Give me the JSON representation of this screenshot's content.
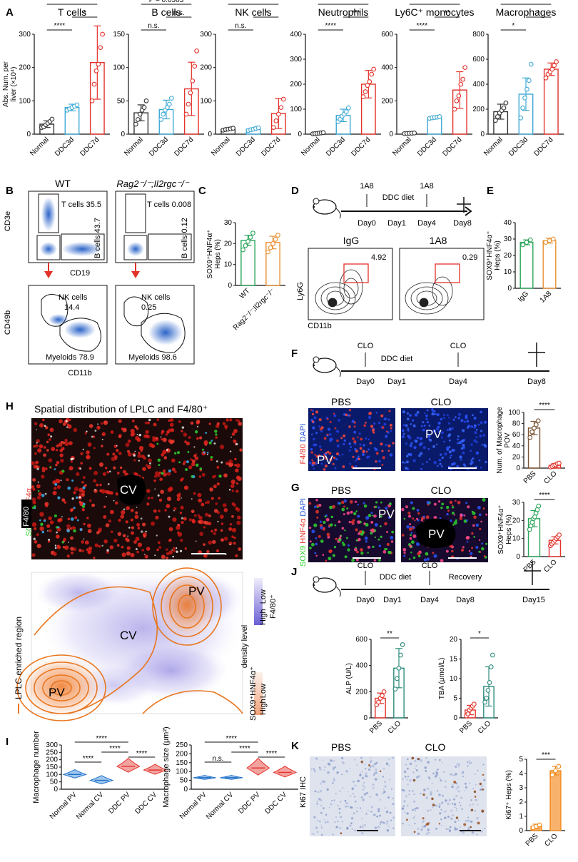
{
  "colors": {
    "normal": "#333333",
    "ddc3d": "#3fa9d6",
    "ddc7d": "#e3322b",
    "wt": "#2aa55a",
    "rag": "#e99033",
    "pbs": "#7a5230",
    "clo": "#e3322b",
    "teal": "#2a8a7a",
    "orange": "#f08a1c",
    "blueRow": "#1f6fc6"
  },
  "panelA": {
    "letter": "A",
    "ylabel_line1": "Abs. Num. per",
    "ylabel_line2": "liver (×10⁴)",
    "groups": [
      "Normal",
      "DDC3d",
      "DDC7d"
    ],
    "charts": [
      {
        "title": "T cells",
        "ymax": 300,
        "ticks": [
          "0",
          "100",
          "200",
          "300"
        ],
        "means": [
          30,
          80,
          215
        ],
        "sd": [
          10,
          10,
          110
        ],
        "points": [
          [
            20,
            22,
            28,
            33,
            38,
            45
          ],
          [
            72,
            76,
            80,
            84,
            88
          ],
          [
            100,
            150,
            190,
            210,
            260,
            300
          ]
        ],
        "sigs": [
          {
            "a": 0,
            "b": 2,
            "label": "***",
            "level": 2
          },
          {
            "a": 0,
            "b": 1,
            "label": "****",
            "level": 0
          },
          {
            "a": 1,
            "b": 2,
            "label": "*",
            "level": 1
          }
        ]
      },
      {
        "title": "B cells",
        "ymax": 150,
        "ticks": [
          "0",
          "50",
          "100",
          "150"
        ],
        "means": [
          32,
          37,
          68
        ],
        "sd": [
          12,
          14,
          40
        ],
        "points": [
          [
            15,
            22,
            30,
            36,
            40,
            50
          ],
          [
            22,
            30,
            36,
            40,
            45,
            54
          ],
          [
            30,
            45,
            62,
            80,
            102,
            125
          ]
        ],
        "sigs": [
          {
            "a": 0,
            "b": 2,
            "label": "P = 0.0503",
            "level": 2
          },
          {
            "a": 0,
            "b": 1,
            "label": "n.s.",
            "level": 0
          },
          {
            "a": 1,
            "b": 2,
            "label": "n.s.",
            "level": 1
          }
        ]
      },
      {
        "title": "NK cells",
        "ymax": 300,
        "ticks": [
          "0",
          "100",
          "200",
          "300"
        ],
        "means": [
          15,
          15,
          62
        ],
        "sd": [
          3,
          4,
          45
        ],
        "points": [
          [
            12,
            14,
            15,
            16,
            18
          ],
          [
            11,
            13,
            15,
            17,
            19
          ],
          [
            20,
            40,
            60,
            80,
            105
          ]
        ],
        "sigs": [
          {
            "a": 0,
            "b": 2,
            "label": "*",
            "level": 2
          },
          {
            "a": 0,
            "b": 1,
            "label": "n.s.",
            "level": 0
          },
          {
            "a": 1,
            "b": 2,
            "label": "*",
            "level": 1
          }
        ]
      },
      {
        "title": "Neutrophils",
        "ymax": 400,
        "ticks": [
          "0",
          "100",
          "200",
          "300",
          "400"
        ],
        "means": [
          3,
          75,
          200
        ],
        "sd": [
          2,
          25,
          55
        ],
        "points": [
          [
            1,
            2,
            3,
            4,
            5,
            6
          ],
          [
            50,
            60,
            72,
            80,
            90,
            105
          ],
          [
            150,
            170,
            195,
            210,
            240,
            260
          ]
        ],
        "sigs": [
          {
            "a": 0,
            "b": 2,
            "label": "****",
            "level": 2
          },
          {
            "a": 0,
            "b": 1,
            "label": "****",
            "level": 0
          },
          {
            "a": 1,
            "b": 2,
            "label": "***",
            "level": 1
          }
        ]
      },
      {
        "title": "Ly6C⁺ monocytes",
        "ymax": 600,
        "ticks": [
          "0",
          "200",
          "400",
          "600"
        ],
        "means": [
          5,
          100,
          265
        ],
        "sd": [
          2,
          5,
          110
        ],
        "points": [
          [
            3,
            4,
            5,
            6,
            7
          ],
          [
            95,
            98,
            100,
            102,
            105
          ],
          [
            150,
            200,
            230,
            300,
            330,
            400
          ]
        ],
        "sigs": [
          {
            "a": 0,
            "b": 2,
            "label": "****",
            "level": 2
          },
          {
            "a": 0,
            "b": 1,
            "label": "****",
            "level": 0
          },
          {
            "a": 1,
            "b": 2,
            "label": "**",
            "level": 1
          }
        ]
      },
      {
        "title": "Macrophages",
        "ymax": 800,
        "ticks": [
          "0",
          "200",
          "400",
          "600",
          "800"
        ],
        "means": [
          180,
          320,
          520
        ],
        "sd": [
          60,
          130,
          50
        ],
        "points": [
          [
            110,
            140,
            170,
            190,
            210,
            250
          ],
          [
            130,
            210,
            290,
            360,
            430,
            560
          ],
          [
            450,
            480,
            500,
            520,
            550,
            580
          ]
        ],
        "sigs": [
          {
            "a": 0,
            "b": 2,
            "label": "****",
            "level": 2
          },
          {
            "a": 0,
            "b": 1,
            "label": "*",
            "level": 0
          },
          {
            "a": 1,
            "b": 2,
            "label": "*",
            "level": 1
          }
        ]
      }
    ]
  },
  "panelB": {
    "letter": "B",
    "wt": "WT",
    "rag": "Rag2⁻/⁻;Il2rgc⁻/⁻",
    "ax_cd3e": "CD3e",
    "ax_cd19": "CD19",
    "ax_cd49b": "CD49b",
    "ax_cd11b": "CD11b",
    "wt_t": "T cells 35.5",
    "wt_b": "B cells 43.7",
    "rag_t": "T cells 0.008",
    "rag_b": "B cells 0.12",
    "nk_label": "NK cells",
    "wt_nk_val": "14.4",
    "rag_nk_val": "0.25",
    "wt_myeloid": "Myeloids 78.9",
    "rag_myeloid": "Myeloids 98.6"
  },
  "panelC": {
    "letter": "C",
    "ylabel_line1": "SOX9⁺HNF4α⁺",
    "ylabel_line2": "Heps (%)",
    "ticks": [
      "0",
      "10",
      "20",
      "30"
    ],
    "groups": [
      "WT",
      "Rag2⁻/⁻;Il2rgc⁻/⁻"
    ],
    "means": [
      21.5,
      20.5
    ],
    "sd": [
      2.5,
      3
    ],
    "points": [
      [
        17,
        19,
        21,
        23,
        25
      ],
      [
        16,
        18,
        20,
        22,
        24
      ]
    ]
  },
  "panelD": {
    "letter": "D",
    "t1": "1A8",
    "t2": "1A8",
    "diet": "DDC diet",
    "days": [
      "Day0",
      "Day1",
      "Day4",
      "Day8"
    ],
    "igg": "IgG",
    "a18": "1A8",
    "val1": "4.92",
    "val2": "0.29",
    "ax_ly6g": "Ly6G",
    "ax_cd11b": "CD11b"
  },
  "panelE": {
    "letter": "E",
    "ylabel_line1": "SOX9⁺HNF4α⁺",
    "ylabel_line2": "Heps (%)",
    "ticks": [
      "0",
      "10",
      "20",
      "30",
      "40"
    ],
    "groups": [
      "IgG",
      "1A8"
    ],
    "means": [
      28,
      29
    ],
    "sd": [
      1.5,
      1.5
    ],
    "points": [
      [
        26.5,
        28,
        29.5
      ],
      [
        28,
        29,
        30
      ]
    ]
  },
  "panelF": {
    "letter": "F",
    "t1": "CLO",
    "t2": "CLO",
    "diet": "DDC diet",
    "days": [
      "Day0",
      "Day1",
      "Day4",
      "Day8"
    ]
  },
  "panelFimg": {
    "pbs": "PBS",
    "clo": "CLO",
    "pv": "PV",
    "f480": "F4/80",
    "dapi": "DAPI",
    "ylabel_line1": "Num. of Macrophage",
    "ylabel_line2": "POV",
    "ticks": [
      "0",
      "20",
      "40",
      "60",
      "80",
      "100"
    ],
    "groups": [
      "PBS",
      "CLO"
    ],
    "means": [
      72,
      5
    ],
    "sd": [
      12,
      3
    ],
    "points": [
      [
        55,
        65,
        72,
        78,
        85
      ],
      [
        2,
        3,
        5,
        6,
        8,
        9
      ]
    ],
    "sig": "****"
  },
  "panelG": {
    "letter": "G",
    "pbs": "PBS",
    "clo": "CLO",
    "pv": "PV",
    "sox9": "SOX9",
    "hnf4a": "HNF4α",
    "dapi": "DAPI",
    "ylabel_line1": "SOX9⁺HNF4α⁺",
    "ylabel_line2": "Heps (%)",
    "ticks": [
      "0",
      "10",
      "20",
      "30"
    ],
    "groups": [
      "PBS",
      "CLO"
    ],
    "means": [
      21,
      9
    ],
    "sd": [
      4.5,
      2
    ],
    "points": [
      [
        15,
        17,
        19,
        21,
        22,
        24,
        26,
        28
      ],
      [
        6,
        7,
        8,
        9,
        10,
        11,
        12
      ]
    ],
    "sig": "****"
  },
  "panelH": {
    "letter": "H",
    "title": "Spatial distribution of LPLC and F4/80⁺",
    "cv": "CV",
    "pv": "PV",
    "sox9": "SOX9",
    "hnf4a": "HNF4α",
    "f480": "F4/80",
    "legend_lplc": "LPLC enriched region",
    "density": "density level",
    "f480_leg": "F4/80⁺",
    "sox9_leg": "SOX9⁺HNF4α⁺",
    "low": "Low",
    "high": "High"
  },
  "panelI": {
    "letter": "I",
    "c1": {
      "ylabel": "Macrophage number",
      "ticks": [
        "0",
        "50",
        "100",
        "150",
        "200",
        "250",
        "300"
      ],
      "ymax": 300,
      "groups": [
        "Normal PV",
        "Normal CV",
        "DDC PV",
        "DDC CV"
      ],
      "medians": [
        100,
        60,
        155,
        130
      ],
      "spread": [
        15,
        15,
        25,
        18
      ],
      "sigs": [
        {
          "a": 0,
          "b": 2,
          "label": "****",
          "level": 2
        },
        {
          "a": 1,
          "b": 2,
          "label": "****",
          "level": 1
        },
        {
          "a": 0,
          "b": 1,
          "label": "****",
          "level": 0
        },
        {
          "a": 2,
          "b": 3,
          "label": "****",
          "level": 0.5
        }
      ]
    },
    "c2": {
      "ylabel": "Macrophage size (μm²)",
      "ticks": [
        "0",
        "50",
        "100",
        "150",
        "200",
        "250"
      ],
      "ymax": 250,
      "groups": [
        "Normal PV",
        "Normal CV",
        "DDC PV",
        "DDC CV"
      ],
      "medians": [
        65,
        65,
        120,
        95
      ],
      "spread": [
        6,
        6,
        25,
        16
      ],
      "sigs": [
        {
          "a": 0,
          "b": 2,
          "label": "****",
          "level": 2
        },
        {
          "a": 1,
          "b": 2,
          "label": "****",
          "level": 1
        },
        {
          "a": 0,
          "b": 1,
          "label": "n.s.",
          "level": 0
        },
        {
          "a": 2,
          "b": 3,
          "label": "****",
          "level": 0.5
        }
      ]
    }
  },
  "panelJ": {
    "letter": "J",
    "t1": "CLO",
    "t2": "CLO",
    "diet": "DDC diet",
    "recovery": "Recovery",
    "days": [
      "Day0",
      "Day1",
      "Day4",
      "Day8",
      "Day15"
    ],
    "alp": {
      "ylabel": "ALP (U/L)",
      "ticks": [
        "0",
        "200",
        "400",
        "600"
      ],
      "ymax": 600,
      "groups": [
        "PBS",
        "CLO"
      ],
      "means": [
        150,
        380
      ],
      "sd": [
        40,
        150
      ],
      "points": [
        [
          100,
          120,
          150,
          170,
          200
        ],
        [
          220,
          300,
          380,
          480,
          560
        ]
      ],
      "sig": "**"
    },
    "tba": {
      "ylabel": "TBA (μmol/L)",
      "ticks": [
        "0",
        "5",
        "10",
        "15",
        "20"
      ],
      "ymax": 20,
      "groups": [
        "PBS",
        "CLO"
      ],
      "means": [
        2,
        8
      ],
      "sd": [
        1.2,
        5
      ],
      "points": [
        [
          0.5,
          1,
          2,
          2.5,
          3,
          3.5
        ],
        [
          4,
          5,
          7,
          9,
          13,
          16
        ]
      ],
      "sig": "*"
    }
  },
  "panelK": {
    "letter": "K",
    "pbs": "PBS",
    "clo": "CLO",
    "ihc": "Ki67 IHC",
    "ylabel": "Ki67⁺ Heps (%)",
    "ticks": [
      "0",
      "1",
      "2",
      "3",
      "4",
      "5"
    ],
    "ymax": 5,
    "groups": [
      "PBS",
      "CLO"
    ],
    "means": [
      0.3,
      4.2
    ],
    "sd": [
      0.15,
      0.3
    ],
    "points": [
      [
        0.2,
        0.3,
        0.4
      ],
      [
        3.9,
        4.2,
        4.5
      ]
    ],
    "sig": "***"
  }
}
